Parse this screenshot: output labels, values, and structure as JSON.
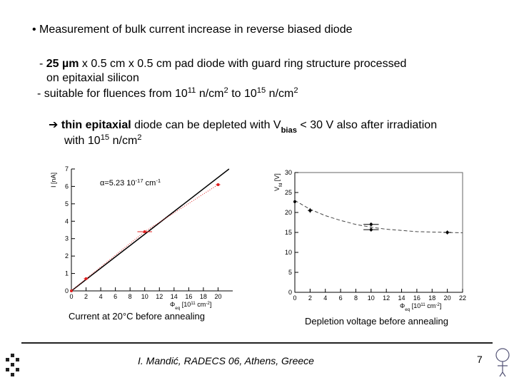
{
  "bullet": "• Measurement of bulk current increase in reverse biased diode",
  "lines": [
    {
      "segments": [
        {
          "text": "- "
        },
        {
          "text": "25 µm",
          "style": "bold"
        },
        {
          "text": " x 0.5 cm x 0.5 cm pad diode with guard ring structure processed"
        }
      ]
    },
    {
      "segments": [
        {
          "text": "on epitaxial silicon"
        }
      ]
    },
    {
      "segments": [
        {
          "text": "- suitable for fluences from 10"
        },
        {
          "text": "11",
          "style": "sup"
        },
        {
          "text": " n/cm"
        },
        {
          "text": "2",
          "style": "sup"
        },
        {
          "text": " to 10"
        },
        {
          "text": "15",
          "style": "sup"
        },
        {
          "text": " n/cm"
        },
        {
          "text": "2",
          "style": "sup"
        }
      ]
    },
    {
      "segments": [
        {
          "text": "➔ "
        },
        {
          "text": "thin epitaxial",
          "style": "bold"
        },
        {
          "text": " diode can be depleted with V"
        },
        {
          "text": "bias",
          "style": "sub bold"
        },
        {
          "text": " < 30 V also after irradiation"
        }
      ]
    },
    {
      "segments": [
        {
          "text": "with 10"
        },
        {
          "text": "15",
          "style": "sup"
        },
        {
          "text": " n/cm"
        },
        {
          "text": "2",
          "style": "sup"
        }
      ]
    }
  ],
  "figures": [
    {
      "type": "scatter",
      "ylabel": [
        {
          "text": "I [nA]"
        }
      ],
      "xlabel": [
        {
          "text": "Φ"
        },
        {
          "text": "eq",
          "style": "sub"
        },
        {
          "text": " [10"
        },
        {
          "text": "11",
          "style": "sup"
        },
        {
          "text": " cm"
        },
        {
          "text": "-2",
          "style": "sup"
        },
        {
          "text": "]"
        }
      ],
      "annotation": [
        {
          "text": "α=5.23 10"
        },
        {
          "text": "-17",
          "style": "sup"
        },
        {
          "text": " cm"
        },
        {
          "text": "-1",
          "style": "sup"
        }
      ],
      "x": [
        0,
        2,
        10,
        20
      ],
      "values": [
        0,
        0.7,
        3.4,
        6.1
      ],
      "xerr": [
        0,
        0.3,
        1,
        0.3
      ],
      "color": "#e02020",
      "fit": {
        "x": [
          0,
          21.5
        ],
        "values": [
          0,
          7
        ],
        "color": "#000000"
      },
      "xlim": [
        0,
        22
      ],
      "ylim": [
        0,
        7
      ],
      "xticks": [
        0,
        2,
        4,
        6,
        8,
        10,
        12,
        14,
        16,
        18,
        20
      ],
      "yticks": [
        0,
        1,
        2,
        3,
        4,
        5,
        6,
        7
      ],
      "caption": "Current at 20°C before annealing"
    },
    {
      "type": "scatter",
      "ylabel": [
        {
          "text": "V"
        },
        {
          "text": "fd",
          "style": "sub"
        },
        {
          "text": " [V]"
        }
      ],
      "xlabel": [
        {
          "text": "Φ"
        },
        {
          "text": "eq",
          "style": "sub"
        },
        {
          "text": " [10"
        },
        {
          "text": "11",
          "style": "sup"
        },
        {
          "text": " cm"
        },
        {
          "text": "-2",
          "style": "sup"
        },
        {
          "text": "]"
        }
      ],
      "x": [
        0,
        2,
        10,
        10,
        20
      ],
      "values": [
        22.7,
        20.5,
        17,
        15.7,
        15
      ],
      "xerr": [
        0,
        0.3,
        1,
        1,
        0.5
      ],
      "yerr": [
        0.5,
        0.6,
        0.5,
        0.5,
        0.5
      ],
      "color": "#000000",
      "fit": {
        "x": [
          0,
          2,
          4,
          6,
          8,
          10,
          12,
          14,
          16,
          18,
          20,
          22
        ],
        "values": [
          23,
          20.8,
          19.2,
          18,
          17,
          16.3,
          15.8,
          15.5,
          15.2,
          15.1,
          15,
          14.9
        ],
        "color": "#444444"
      },
      "xlim": [
        0,
        22
      ],
      "ylim": [
        0,
        30
      ],
      "xticks": [
        0,
        2,
        4,
        6,
        8,
        10,
        12,
        14,
        16,
        18,
        20,
        22
      ],
      "yticks": [
        0,
        5,
        10,
        15,
        20,
        25,
        30
      ],
      "caption": "Depletion voltage before annealing"
    }
  ],
  "footer": {
    "text": "I. Mandić, RADECS 06, Athens, Greece",
    "page": "7"
  }
}
